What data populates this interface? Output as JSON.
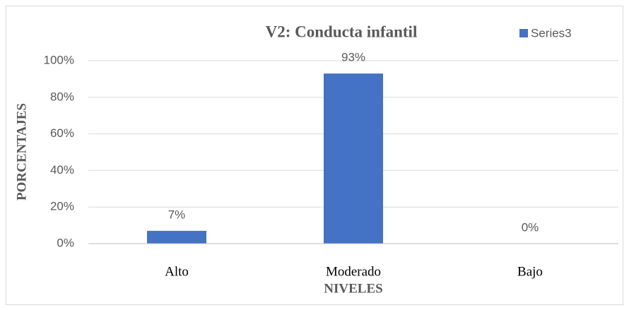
{
  "chart_data": {
    "type": "bar",
    "title": "V2: Conducta infantil",
    "x_label": "NIVELES",
    "y_label": "PORCENTAJES",
    "categories": [
      "Alto",
      "Moderado",
      "Bajo"
    ],
    "series": [
      {
        "name": "Series3",
        "color": "#4472c4",
        "values": [
          7,
          93,
          0
        ],
        "value_labels": [
          "7%",
          "93%",
          "0%"
        ]
      }
    ],
    "ylim": [
      0,
      100
    ],
    "yticks": [
      {
        "value": 0,
        "label": "0%"
      },
      {
        "value": 20,
        "label": "20%"
      },
      {
        "value": 40,
        "label": "40%"
      },
      {
        "value": 60,
        "label": "60%"
      },
      {
        "value": 80,
        "label": "80%"
      },
      {
        "value": 100,
        "label": "100%"
      }
    ],
    "grid": true,
    "legend": "top-right"
  }
}
